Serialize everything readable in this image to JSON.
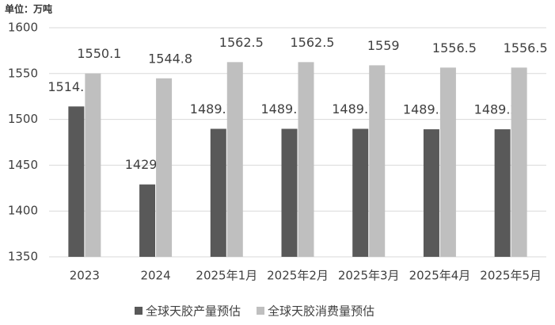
{
  "chart_data": {
    "type": "bar",
    "unit_label": "单位：万吨",
    "categories": [
      "2023",
      "2024",
      "2025年1月",
      "2025年2月",
      "2025年3月",
      "2025年4月",
      "2025年5月"
    ],
    "series": [
      {
        "name": "全球天胶产量预估",
        "color": "#595959",
        "values": [
          1514.1,
          1429,
          1489.7,
          1489.7,
          1489.7,
          1489.2,
          1489.2
        ]
      },
      {
        "name": "全球天胶消费量预估",
        "color": "#bfbfbf",
        "values": [
          1550.1,
          1544.8,
          1562.5,
          1562.5,
          1559,
          1556.5,
          1556.5
        ]
      }
    ],
    "ylim": [
      1350,
      1600
    ],
    "yticks": [
      1350,
      1400,
      1450,
      1500,
      1550,
      1600
    ],
    "grid": true,
    "legend": "bottom"
  }
}
